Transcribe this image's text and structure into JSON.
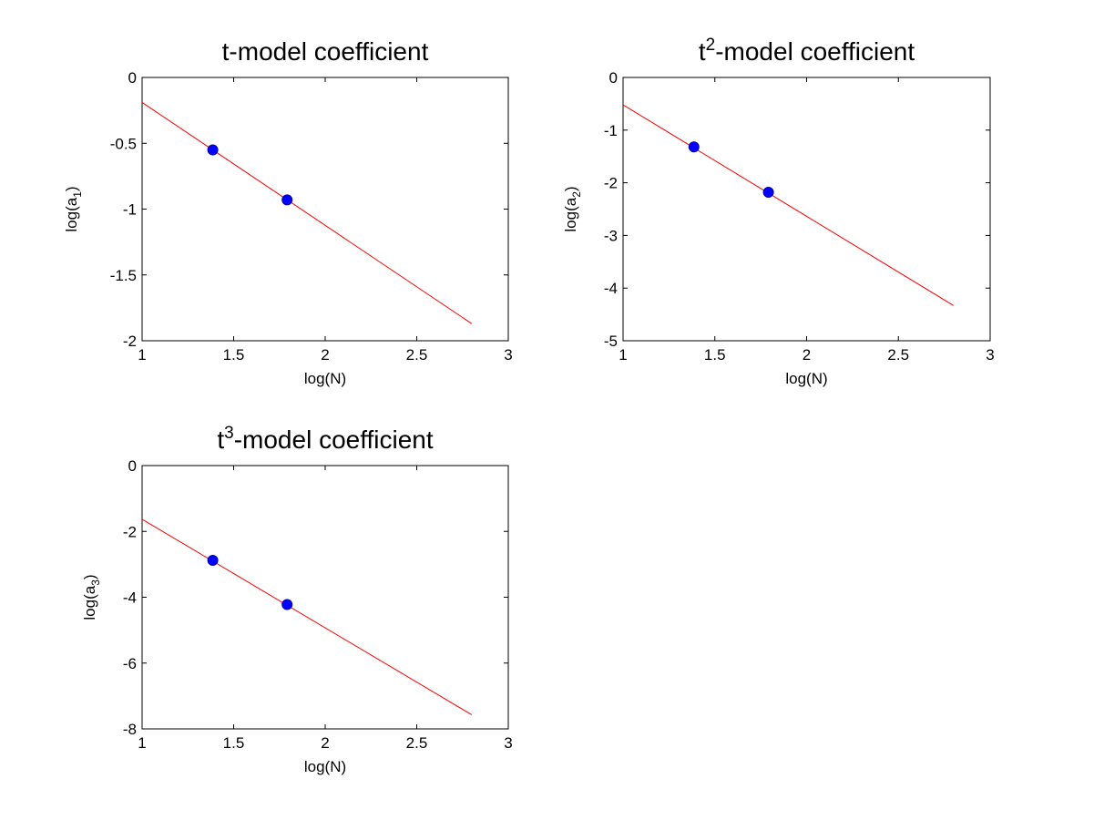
{
  "chart_data": [
    {
      "type": "scatter",
      "title": "t-model coefficient",
      "title_base": "t",
      "title_sup": "",
      "title_rest": "-model coefficient",
      "xlabel": "log(N)",
      "ylabel_base": "log(a",
      "ylabel_sub": "1",
      "ylabel_end": ")",
      "xlim": [
        1,
        3
      ],
      "ylim": [
        -2,
        0
      ],
      "xticks": [
        "1",
        "1.5",
        "2",
        "2.5",
        "3"
      ],
      "yticks": [
        "0",
        "-0.5",
        "-1",
        "-1.5",
        "-2"
      ],
      "points": [
        {
          "x": 1.386,
          "y": -0.55
        },
        {
          "x": 1.792,
          "y": -0.93
        }
      ],
      "fit_line": {
        "x": [
          1,
          2.8
        ],
        "y": [
          -0.19,
          -1.87
        ]
      },
      "point_color": "#0000ff",
      "line_color": "#ff0000"
    },
    {
      "type": "scatter",
      "title": "t2-model coefficient",
      "title_base": "t",
      "title_sup": "2",
      "title_rest": "-model coefficient",
      "xlabel": "log(N)",
      "ylabel_base": "log(a",
      "ylabel_sub": "2",
      "ylabel_end": ")",
      "xlim": [
        1,
        3
      ],
      "ylim": [
        -5,
        0
      ],
      "xticks": [
        "1",
        "1.5",
        "2",
        "2.5",
        "3"
      ],
      "yticks": [
        "0",
        "-1",
        "-2",
        "-3",
        "-4",
        "-5"
      ],
      "points": [
        {
          "x": 1.386,
          "y": -1.32
        },
        {
          "x": 1.792,
          "y": -2.18
        }
      ],
      "fit_line": {
        "x": [
          1,
          2.8
        ],
        "y": [
          -0.52,
          -4.33
        ]
      },
      "point_color": "#0000ff",
      "line_color": "#ff0000"
    },
    {
      "type": "scatter",
      "title": "t3-model coefficient",
      "title_base": "t",
      "title_sup": "3",
      "title_rest": "-model coefficient",
      "xlabel": "log(N)",
      "ylabel_base": "log(a",
      "ylabel_sub": "3",
      "ylabel_end": ")",
      "xlim": [
        1,
        3
      ],
      "ylim": [
        -8,
        0
      ],
      "xticks": [
        "1",
        "1.5",
        "2",
        "2.5",
        "3"
      ],
      "yticks": [
        "0",
        "-2",
        "-4",
        "-6",
        "-8"
      ],
      "points": [
        {
          "x": 1.386,
          "y": -2.88
        },
        {
          "x": 1.792,
          "y": -4.22
        }
      ],
      "fit_line": {
        "x": [
          1,
          2.8
        ],
        "y": [
          -1.63,
          -7.57
        ]
      },
      "point_color": "#0000ff",
      "line_color": "#ff0000"
    }
  ]
}
